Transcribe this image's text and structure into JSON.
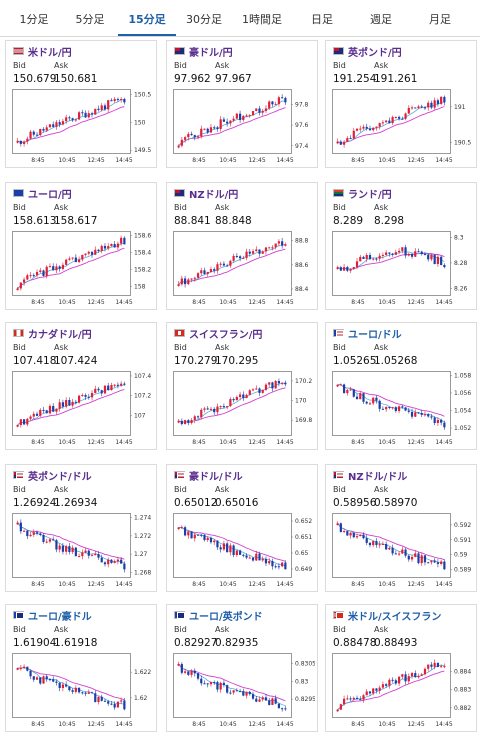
{
  "tabs": [
    {
      "label": "1分足",
      "active": false
    },
    {
      "label": "5分足",
      "active": false
    },
    {
      "label": "15分足",
      "active": true
    },
    {
      "label": "30分足",
      "active": false
    },
    {
      "label": "1時間足",
      "active": false
    },
    {
      "label": "日足",
      "active": false
    },
    {
      "label": "週足",
      "active": false
    },
    {
      "label": "月足",
      "active": false
    }
  ],
  "labels": {
    "bid": "Bid",
    "ask": "Ask"
  },
  "x_ticks": [
    "8:45",
    "10:45",
    "12:45",
    "14:45"
  ],
  "colors": {
    "up": "#e0203a",
    "down": "#1c3ea8",
    "ma": "#d43fd0",
    "ma2": "#46a6d8",
    "accent": "#1e5fa8"
  },
  "cards": [
    {
      "pair": "米ドル/円",
      "color": "purple",
      "flag": "us",
      "bid": "150.679",
      "ask": "150.681",
      "ylim": [
        149.45,
        150.6
      ],
      "yticks": [
        "150.5",
        "150",
        "149.5"
      ],
      "trend": "up"
    },
    {
      "pair": "豪ドル/円",
      "color": "purple",
      "flag": "au",
      "bid": "97.962",
      "ask": "97.967",
      "ylim": [
        97.33,
        97.95
      ],
      "yticks": [
        "97.8",
        "97.6",
        "97.4"
      ],
      "trend": "up"
    },
    {
      "pair": "英ポンド/円",
      "color": "purple",
      "flag": "gb",
      "bid": "191.254",
      "ask": "191.261",
      "ylim": [
        190.35,
        191.25
      ],
      "yticks": [
        "191",
        "190.5"
      ],
      "trend": "up"
    },
    {
      "pair": "ユーロ/円",
      "color": "purple",
      "flag": "eu",
      "bid": "158.613",
      "ask": "158.617",
      "ylim": [
        157.9,
        158.65
      ],
      "yticks": [
        "158.6",
        "158.4",
        "158.2",
        "158"
      ],
      "trend": "up"
    },
    {
      "pair": "NZドル/円",
      "color": "purple",
      "flag": "nz",
      "bid": "88.841",
      "ask": "88.848",
      "ylim": [
        88.35,
        88.88
      ],
      "yticks": [
        "88.8",
        "88.6",
        "88.4"
      ],
      "trend": "up"
    },
    {
      "pair": "ランド/円",
      "color": "purple",
      "flag": "za",
      "bid": "8.289",
      "ask": "8.298",
      "ylim": [
        8.255,
        8.305
      ],
      "yticks": [
        "8.3",
        "8.28",
        "8.26"
      ],
      "trend": "flat"
    },
    {
      "pair": "カナダドル/円",
      "color": "purple",
      "flag": "ca",
      "bid": "107.418",
      "ask": "107.424",
      "ylim": [
        106.8,
        107.45
      ],
      "yticks": [
        "107.4",
        "107.2",
        "107"
      ],
      "trend": "up"
    },
    {
      "pair": "スイスフラン/円",
      "color": "purple",
      "flag": "ch",
      "bid": "170.279",
      "ask": "170.295",
      "ylim": [
        169.65,
        170.3
      ],
      "yticks": [
        "170.2",
        "170",
        "169.8"
      ],
      "trend": "up"
    },
    {
      "pair": "ユーロ/ドル",
      "color": "blue",
      "flag": "eu_us",
      "bid": "1.05265",
      "ask": "1.05268",
      "ylim": [
        1.0512,
        1.0585
      ],
      "yticks": [
        "1.058",
        "1.056",
        "1.054",
        "1.052"
      ],
      "trend": "down"
    },
    {
      "pair": "英ポンド/ドル",
      "color": "purple",
      "flag": "gb_us",
      "bid": "1.26924",
      "ask": "1.26934",
      "ylim": [
        1.2675,
        1.2745
      ],
      "yticks": [
        "1.274",
        "1.272",
        "1.27",
        "1.268"
      ],
      "trend": "down"
    },
    {
      "pair": "豪ドル/ドル",
      "color": "purple",
      "flag": "au_us",
      "bid": "0.65012",
      "ask": "0.65016",
      "ylim": [
        0.6485,
        0.6525
      ],
      "yticks": [
        "0.652",
        "0.651",
        "0.65",
        "0.649"
      ],
      "trend": "down"
    },
    {
      "pair": "NZドル/ドル",
      "color": "purple",
      "flag": "nz_us",
      "bid": "0.58956",
      "ask": "0.58970",
      "ylim": [
        0.5885,
        0.5928
      ],
      "yticks": [
        "0.592",
        "0.591",
        "0.59",
        "0.589"
      ],
      "trend": "down"
    },
    {
      "pair": "ユーロ/豪ドル",
      "color": "blue",
      "flag": "eu_au",
      "bid": "1.61904",
      "ask": "1.61918",
      "ylim": [
        1.6185,
        1.6235
      ],
      "yticks": [
        "1.622",
        "1.62"
      ],
      "trend": "down"
    },
    {
      "pair": "ユーロ/英ポンド",
      "color": "blue",
      "flag": "eu_gb",
      "bid": "0.82927",
      "ask": "0.82935",
      "ylim": [
        0.829,
        0.8308
      ],
      "yticks": [
        "0.8305",
        "0.83",
        "0.8295"
      ],
      "trend": "down"
    },
    {
      "pair": "米ドル/スイスフラン",
      "color": "blue",
      "flag": "us_ch",
      "bid": "0.88478",
      "ask": "0.88493",
      "ylim": [
        0.8815,
        0.885
      ],
      "yticks": [
        "0.884",
        "0.883",
        "0.882"
      ],
      "trend": "up"
    }
  ]
}
